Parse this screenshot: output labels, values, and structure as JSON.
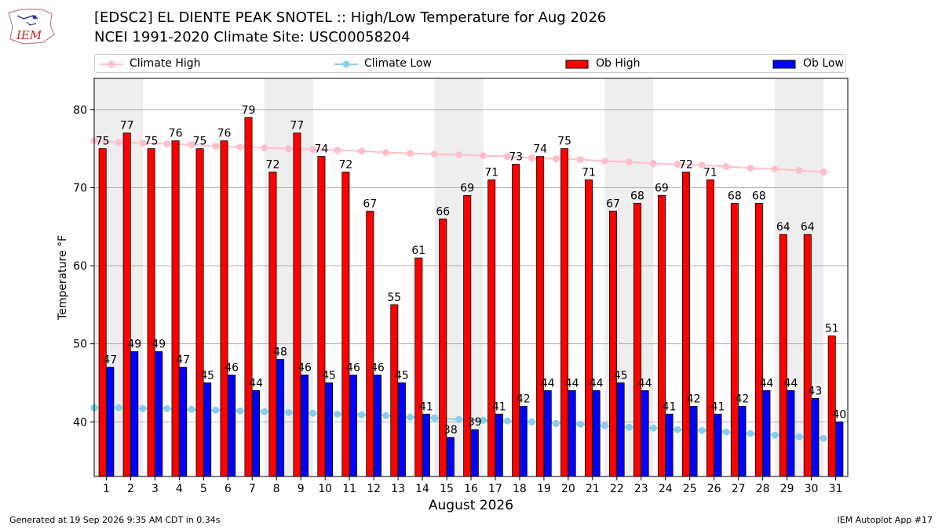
{
  "header": {
    "title_line1": "[EDSC2] EL DIENTE PEAK SNOTEL :: High/Low Temperature for Aug 2026",
    "title_line2": "NCEI 1991-2020 Climate Site: USC00058204",
    "logo_text": "IEM"
  },
  "legend": {
    "climate_high": "Climate High",
    "climate_low": "Climate Low",
    "ob_high": "Ob High",
    "ob_low": "Ob Low"
  },
  "footer": {
    "generated": "Generated at 19 Sep 2026 9:35 AM CDT in 0.34s",
    "app": "IEM Autoplot App #17"
  },
  "colors": {
    "ob_high": "#ff0000",
    "ob_low": "#0000ff",
    "climate_high": "#ffc0cb",
    "climate_low": "#87ceeb",
    "weekend_band": "#eeeeee"
  },
  "chart_data": {
    "type": "bar",
    "xlabel": "August 2026",
    "ylabel": "Temperature °F",
    "ylim": [
      33,
      84
    ],
    "yticks": [
      40,
      50,
      60,
      70,
      80
    ],
    "grid": "horizontal",
    "legend_position": "top",
    "categories": [
      "1",
      "2",
      "3",
      "4",
      "5",
      "6",
      "7",
      "8",
      "9",
      "10",
      "11",
      "12",
      "13",
      "14",
      "15",
      "16",
      "17",
      "18",
      "19",
      "20",
      "21",
      "22",
      "23",
      "24",
      "25",
      "26",
      "27",
      "28",
      "29",
      "30",
      "31"
    ],
    "shaded_days": [
      1,
      2,
      8,
      9,
      15,
      16,
      22,
      23,
      29,
      30
    ],
    "series": [
      {
        "name": "Ob High",
        "kind": "bar",
        "values": [
          75,
          77,
          75,
          76,
          75,
          76,
          79,
          72,
          77,
          74,
          72,
          67,
          55,
          61,
          66,
          69,
          71,
          73,
          74,
          75,
          71,
          67,
          68,
          69,
          72,
          71,
          68,
          68,
          64,
          64,
          51
        ]
      },
      {
        "name": "Ob Low",
        "kind": "bar",
        "values": [
          47,
          49,
          49,
          47,
          45,
          46,
          44,
          48,
          46,
          45,
          46,
          46,
          45,
          41,
          38,
          39,
          41,
          42,
          44,
          44,
          44,
          45,
          44,
          41,
          42,
          41,
          42,
          44,
          44,
          43,
          40
        ]
      },
      {
        "name": "Climate High",
        "kind": "line",
        "values": [
          76.0,
          75.8,
          75.7,
          75.6,
          75.5,
          75.3,
          75.2,
          75.1,
          75.0,
          74.9,
          74.8,
          74.7,
          74.5,
          74.4,
          74.3,
          74.2,
          74.1,
          74.0,
          73.8,
          73.7,
          73.6,
          73.4,
          73.3,
          73.1,
          73.0,
          72.9,
          72.7,
          72.5,
          72.4,
          72.2,
          72.0
        ]
      },
      {
        "name": "Climate Low",
        "kind": "line",
        "values": [
          41.8,
          41.8,
          41.7,
          41.7,
          41.6,
          41.5,
          41.4,
          41.3,
          41.2,
          41.1,
          41.0,
          40.9,
          40.8,
          40.6,
          40.5,
          40.3,
          40.2,
          40.1,
          40.0,
          39.8,
          39.7,
          39.5,
          39.3,
          39.2,
          39.0,
          38.9,
          38.7,
          38.5,
          38.3,
          38.1,
          37.9
        ]
      }
    ]
  }
}
